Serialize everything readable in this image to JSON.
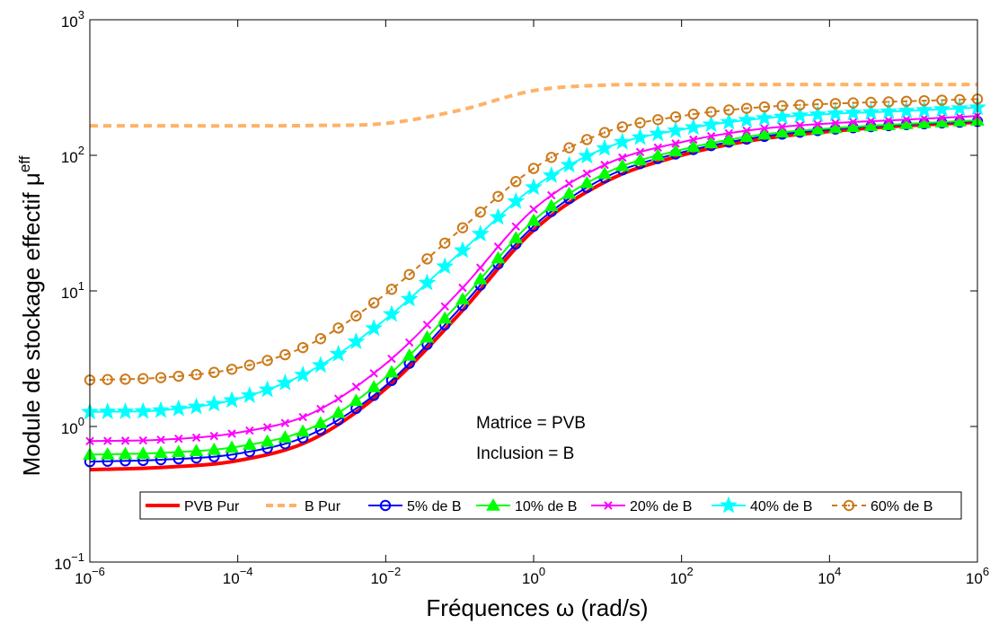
{
  "chart_data": {
    "type": "line",
    "xlabel": "Fréquences ω (rad/s)",
    "ylabel_main": "Module de stockage effectif μ",
    "ylabel_sup": "eff",
    "x_scale": "log",
    "y_scale": "log",
    "xlim": [
      1e-06,
      1000000.0
    ],
    "ylim": [
      0.1,
      1000
    ],
    "grid": false,
    "legend_position": "bottom",
    "x_ticks": [
      {
        "value": 1e-06,
        "base": "10",
        "exp": "−6"
      },
      {
        "value": 0.0001,
        "base": "10",
        "exp": "−4"
      },
      {
        "value": 0.01,
        "base": "10",
        "exp": "−2"
      },
      {
        "value": 1,
        "base": "10",
        "exp": "0"
      },
      {
        "value": 100.0,
        "base": "10",
        "exp": "2"
      },
      {
        "value": 10000.0,
        "base": "10",
        "exp": "4"
      },
      {
        "value": 1000000.0,
        "base": "10",
        "exp": "6"
      }
    ],
    "y_ticks": [
      {
        "value": 0.1,
        "base": "10",
        "exp": "−1"
      },
      {
        "value": 1,
        "base": "10",
        "exp": "0"
      },
      {
        "value": 10,
        "base": "10",
        "exp": "1"
      },
      {
        "value": 100,
        "base": "10",
        "exp": "2"
      },
      {
        "value": 1000,
        "base": "10",
        "exp": "3"
      }
    ],
    "annotations": [
      "Matrice = PVB",
      "Inclusion = B"
    ],
    "series": [
      {
        "name": "PVB Pur",
        "color": "#ff0000",
        "dash": "solid",
        "marker": "none",
        "x": [
          1e-06,
          1e-05,
          0.0001,
          0.001,
          0.01,
          0.1,
          1,
          10,
          100,
          1000,
          10000,
          100000,
          1000000.0
        ],
        "y": [
          0.48,
          0.5,
          0.56,
          0.8,
          1.9,
          6.8,
          28,
          65,
          100,
          130,
          150,
          165,
          175
        ]
      },
      {
        "name": "B Pur",
        "color": "#ffb266",
        "dash": "dashed",
        "marker": "none",
        "x": [
          1e-06,
          1e-05,
          0.0001,
          0.001,
          0.01,
          0.1,
          1,
          10,
          100,
          1000,
          10000,
          100000,
          1000000.0
        ],
        "y": [
          165,
          165,
          165,
          166,
          172,
          215,
          300,
          330,
          332,
          333,
          333,
          333,
          333
        ]
      },
      {
        "name": "5% de B",
        "color": "#0000ff",
        "dash": "solid",
        "marker": "circle",
        "x": [
          1e-06,
          1e-05,
          0.0001,
          0.001,
          0.01,
          0.1,
          1,
          10,
          100,
          1000,
          10000,
          100000,
          1000000.0
        ],
        "y": [
          0.55,
          0.57,
          0.63,
          0.88,
          2.0,
          7.4,
          30,
          70,
          105,
          135,
          155,
          168,
          178
        ]
      },
      {
        "name": "10% de B",
        "color": "#00ff00",
        "dash": "solid",
        "marker": "triangle",
        "x": [
          1e-06,
          1e-05,
          0.0001,
          0.001,
          0.01,
          0.1,
          1,
          10,
          100,
          1000,
          10000,
          100000,
          1000000.0
        ],
        "y": [
          0.62,
          0.64,
          0.71,
          0.98,
          2.3,
          8.2,
          33,
          75,
          110,
          140,
          158,
          170,
          181
        ]
      },
      {
        "name": "20% de B",
        "color": "#ff00ff",
        "dash": "solid",
        "marker": "x",
        "x": [
          1e-06,
          1e-05,
          0.0001,
          0.001,
          0.01,
          0.1,
          1,
          10,
          100,
          1000,
          10000,
          100000,
          1000000.0
        ],
        "y": [
          0.78,
          0.8,
          0.9,
          1.25,
          2.9,
          10,
          40,
          87,
          125,
          155,
          172,
          183,
          195
        ]
      },
      {
        "name": "40% de B",
        "color": "#00ffff",
        "dash": "solid",
        "marker": "star",
        "x": [
          1e-06,
          1e-05,
          0.0001,
          0.001,
          0.01,
          0.1,
          1,
          10,
          100,
          1000,
          10000,
          100000,
          1000000.0
        ],
        "y": [
          1.28,
          1.32,
          1.6,
          2.6,
          6.2,
          19,
          58,
          115,
          155,
          185,
          202,
          212,
          225
        ]
      },
      {
        "name": "60% de B",
        "color": "#cc7a1a",
        "dash": "dashed",
        "marker": "circle-dot",
        "x": [
          1e-06,
          1e-05,
          0.0001,
          0.001,
          0.01,
          0.1,
          1,
          10,
          100,
          1000,
          10000,
          100000,
          1000000.0
        ],
        "y": [
          2.2,
          2.3,
          2.7,
          4.1,
          9.5,
          28,
          80,
          150,
          195,
          225,
          240,
          250,
          260
        ]
      }
    ]
  }
}
